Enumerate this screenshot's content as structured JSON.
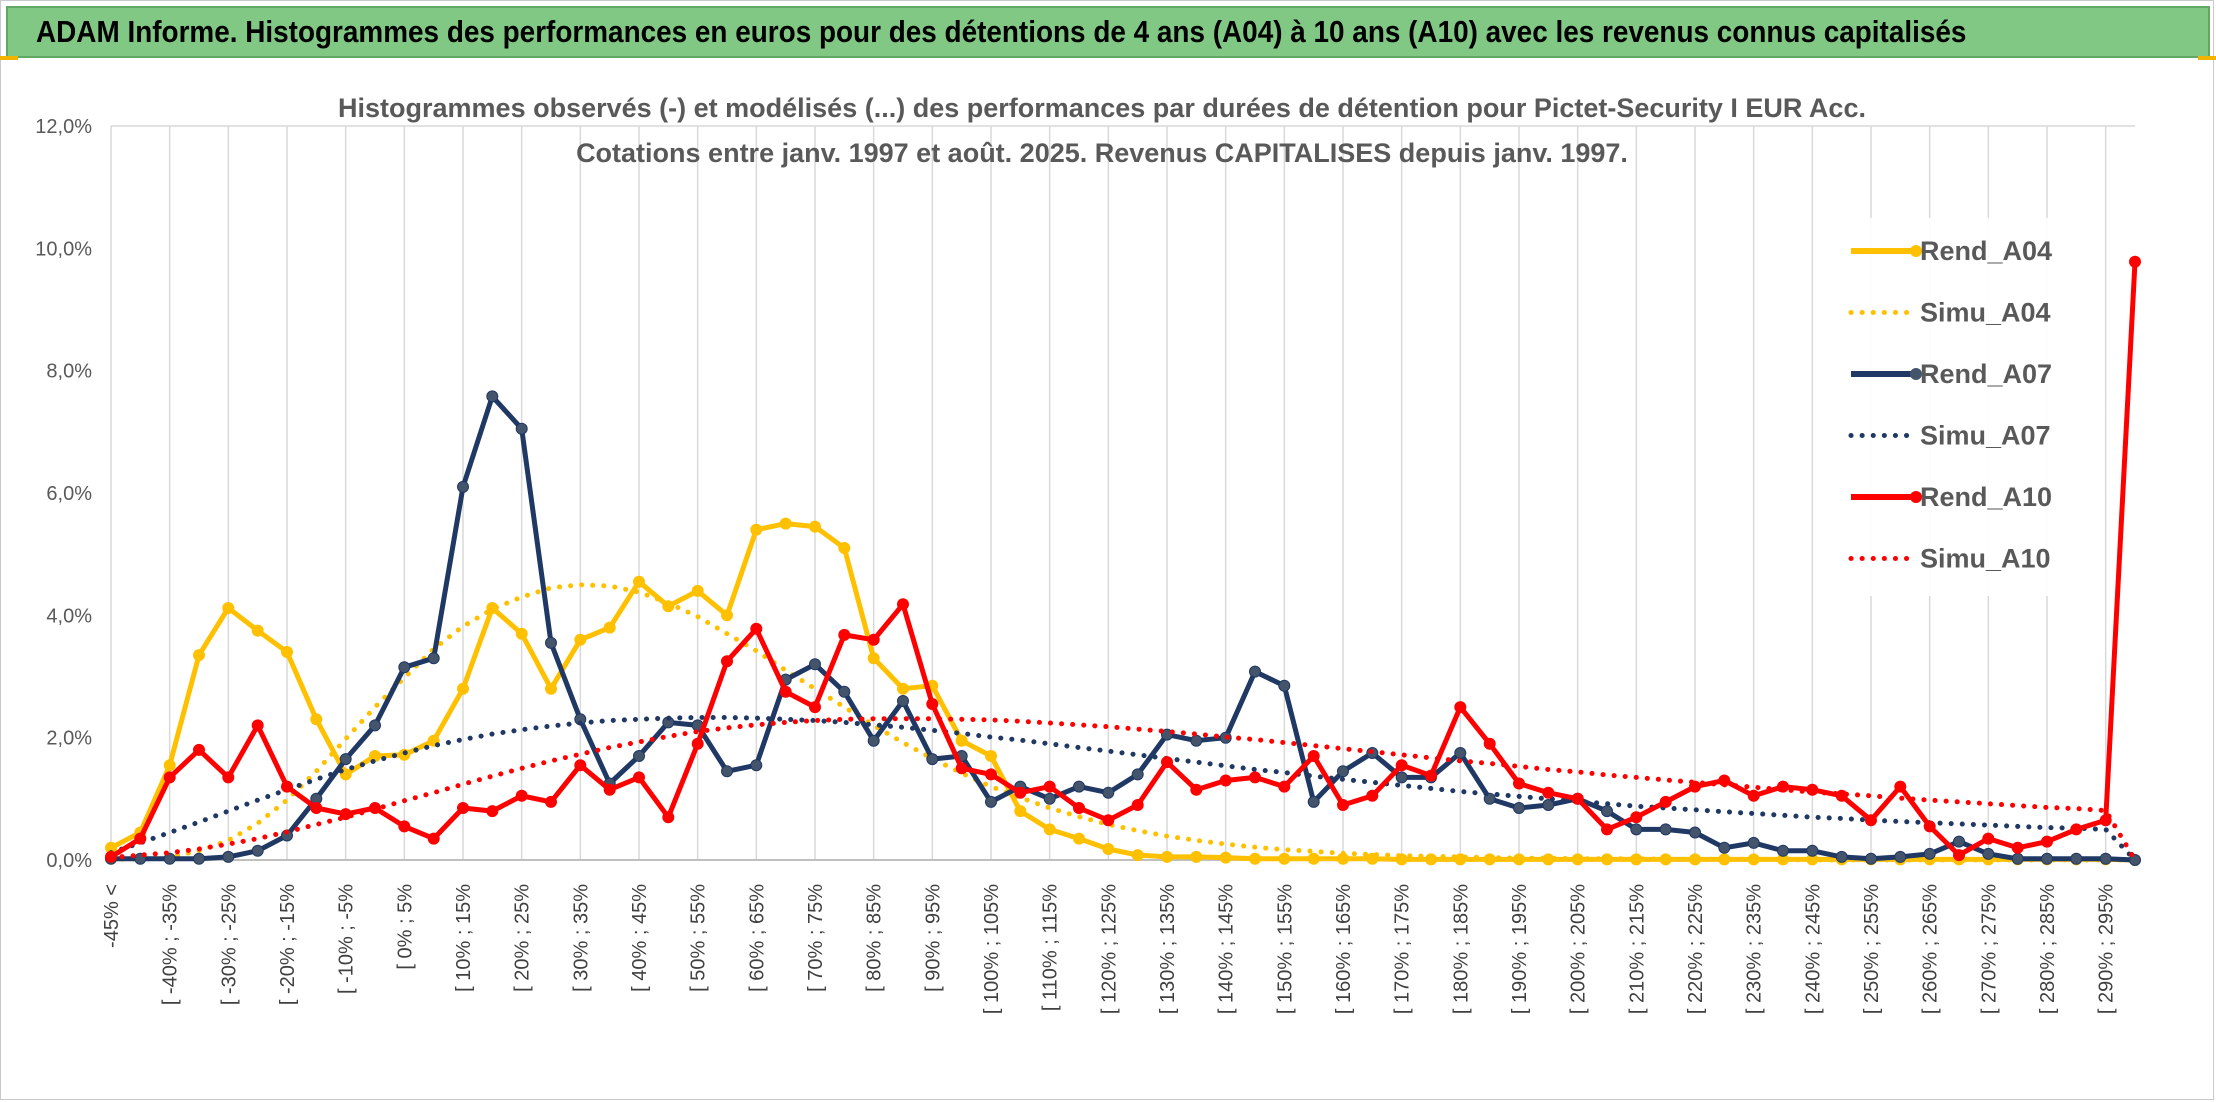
{
  "page": {
    "banner_title": "ADAM Informe. Histogrammes des performances en euros pour des détentions de 4 ans (A04) à 10 ans (A10) avec les revenus connus capitalisés",
    "accent_yellow": "#f2b400",
    "banner_color": "#80c883"
  },
  "chart_data": {
    "type": "line",
    "title_line1": "Histogrammes observés (-) et modélisés (...) des performances par durées de détention pour Pictet-Security I EUR Acc.",
    "title_line2": "Cotations entre janv. 1997 et août. 2025. Revenus CAPITALISES depuis janv. 1997.",
    "y_ticks": [
      "0,0%",
      "2,0%",
      "4,0%",
      "6,0%",
      "8,0%",
      "10,0%",
      "12,0%"
    ],
    "ylim": [
      0,
      12
    ],
    "grid": "vertical",
    "legend_position": "right",
    "x_tick_labels": [
      "-45% <",
      "[ -40% ; -35%",
      "[ -30% ; -25%",
      "[ -20% ; -15%",
      "[ -10% ; -5%",
      "[ 0% ; 5%",
      "[ 10% ; 15%",
      "[ 20% ; 25%",
      "[ 30% ; 35%",
      "[ 40% ; 45%",
      "[ 50% ; 55%",
      "[ 60% ; 65%",
      "[ 70% ; 75%",
      "[ 80% ; 85%",
      "[ 90% ; 95%",
      "[ 100% ; 105%",
      "[ 110% ; 115%",
      "[ 120% ; 125%",
      "[ 130% ; 135%",
      "[ 140% ; 145%",
      "[ 150% ; 155%",
      "[ 160% ; 165%",
      "[ 170% ; 175%",
      "[ 180% ; 185%",
      "[ 190% ; 195%",
      "[ 200% ; 205%",
      "[ 210% ; 215%",
      "[ 220% ; 225%",
      "[ 230% ; 235%",
      "[ 240% ; 245%",
      "[ 250% ; 255%",
      "[ 260% ; 265%",
      "[ 270% ; 275%",
      "[ 280% ; 285%",
      "[ 290% ; 295%"
    ],
    "series": [
      {
        "name": "Rend_A04",
        "style": "solid",
        "color": "#ffc000",
        "values": [
          0.2,
          0.45,
          1.55,
          3.35,
          4.12,
          3.75,
          3.4,
          2.3,
          1.4,
          1.7,
          1.72,
          1.95,
          2.8,
          4.12,
          3.7,
          2.8,
          3.6,
          3.8,
          4.55,
          4.15,
          4.4,
          4.0,
          5.4,
          5.5,
          5.45,
          5.1,
          3.3,
          2.8,
          2.85,
          1.95,
          1.7,
          0.8,
          0.5,
          0.35,
          0.18,
          0.08,
          0.05,
          0.05,
          0.04,
          0.02,
          0.02,
          0.02,
          0.02,
          0.02,
          0.01,
          0.01,
          0.01,
          0.01,
          0.01,
          0.01,
          0.01,
          0.01,
          0.01,
          0.01,
          0.01,
          0.01,
          0.01,
          0.01,
          0.01,
          0.01,
          0.01,
          0.01,
          0.01,
          0.01,
          0.01,
          0.01,
          0.01,
          0.01,
          0.01,
          0.0
        ]
      },
      {
        "name": "Simu_A04",
        "style": "dotted",
        "color": "#ffc000",
        "values": [
          0.01,
          0.02,
          0.05,
          0.15,
          0.32,
          0.6,
          0.98,
          1.45,
          1.98,
          2.5,
          2.98,
          3.45,
          3.82,
          4.1,
          4.3,
          4.45,
          4.5,
          4.48,
          4.38,
          4.2,
          3.98,
          3.7,
          3.42,
          3.1,
          2.8,
          2.5,
          2.2,
          1.92,
          1.66,
          1.42,
          1.2,
          1.02,
          0.85,
          0.71,
          0.58,
          0.48,
          0.39,
          0.32,
          0.26,
          0.21,
          0.17,
          0.14,
          0.11,
          0.09,
          0.07,
          0.06,
          0.05,
          0.04,
          0.03,
          0.03,
          0.02,
          0.02,
          0.02,
          0.01,
          0.01,
          0.01,
          0.01,
          0.01,
          0.0,
          0.0,
          0.0,
          0.0,
          0.0,
          0.0,
          0.0,
          0.0,
          0.0,
          0.0,
          0.0,
          0.0
        ]
      },
      {
        "name": "Rend_A07",
        "style": "solid",
        "color": "#1f3864",
        "values": [
          0.02,
          0.02,
          0.02,
          0.02,
          0.05,
          0.15,
          0.4,
          1.0,
          1.65,
          2.2,
          3.15,
          3.3,
          6.1,
          7.58,
          7.05,
          3.55,
          2.3,
          1.25,
          1.7,
          2.25,
          2.2,
          1.45,
          1.55,
          2.95,
          3.2,
          2.75,
          1.95,
          2.6,
          1.65,
          1.7,
          0.95,
          1.2,
          1.0,
          1.2,
          1.1,
          1.4,
          2.05,
          1.95,
          2.0,
          3.08,
          2.85,
          0.95,
          1.45,
          1.75,
          1.35,
          1.35,
          1.75,
          1.0,
          0.85,
          0.9,
          1.0,
          0.8,
          0.5,
          0.5,
          0.45,
          0.2,
          0.28,
          0.15,
          0.15,
          0.05,
          0.02,
          0.05,
          0.1,
          0.3,
          0.1,
          0.02,
          0.02,
          0.02,
          0.02,
          0.0
        ]
      },
      {
        "name": "Simu_A07",
        "style": "dotted",
        "color": "#1f3864",
        "values": [
          0.12,
          0.28,
          0.45,
          0.62,
          0.8,
          0.98,
          1.15,
          1.32,
          1.48,
          1.62,
          1.75,
          1.87,
          1.97,
          2.06,
          2.13,
          2.19,
          2.24,
          2.28,
          2.3,
          2.32,
          2.33,
          2.33,
          2.32,
          2.3,
          2.28,
          2.25,
          2.21,
          2.17,
          2.12,
          2.07,
          2.01,
          1.96,
          1.9,
          1.84,
          1.78,
          1.72,
          1.66,
          1.6,
          1.54,
          1.48,
          1.43,
          1.37,
          1.32,
          1.27,
          1.22,
          1.17,
          1.12,
          1.08,
          1.04,
          1.0,
          0.96,
          0.92,
          0.88,
          0.85,
          0.82,
          0.79,
          0.76,
          0.73,
          0.7,
          0.68,
          0.65,
          0.63,
          0.61,
          0.59,
          0.57,
          0.55,
          0.53,
          0.52,
          0.5,
          0.0
        ]
      },
      {
        "name": "Rend_A10",
        "style": "solid",
        "color": "#ff0000",
        "values": [
          0.05,
          0.35,
          1.35,
          1.8,
          1.35,
          2.2,
          1.2,
          0.85,
          0.75,
          0.85,
          0.55,
          0.35,
          0.85,
          0.8,
          1.05,
          0.95,
          1.55,
          1.15,
          1.35,
          0.7,
          1.9,
          3.25,
          3.78,
          2.75,
          2.5,
          3.68,
          3.6,
          4.18,
          2.55,
          1.5,
          1.4,
          1.1,
          1.2,
          0.85,
          0.65,
          0.9,
          1.6,
          1.15,
          1.3,
          1.35,
          1.2,
          1.7,
          0.9,
          1.05,
          1.55,
          1.38,
          2.5,
          1.9,
          1.25,
          1.1,
          1.0,
          0.5,
          0.7,
          0.95,
          1.2,
          1.3,
          1.05,
          1.2,
          1.15,
          1.05,
          0.65,
          1.2,
          0.55,
          0.08,
          0.35,
          0.2,
          0.3,
          0.5,
          0.65,
          9.78
        ]
      },
      {
        "name": "Simu_A10",
        "style": "dotted",
        "color": "#ff0000",
        "values": [
          0.04,
          0.08,
          0.12,
          0.18,
          0.26,
          0.35,
          0.46,
          0.58,
          0.7,
          0.83,
          0.97,
          1.1,
          1.24,
          1.37,
          1.5,
          1.62,
          1.73,
          1.84,
          1.93,
          2.02,
          2.1,
          2.16,
          2.21,
          2.25,
          2.28,
          2.3,
          2.31,
          2.31,
          2.31,
          2.3,
          2.29,
          2.27,
          2.24,
          2.21,
          2.18,
          2.14,
          2.1,
          2.06,
          2.01,
          1.97,
          1.92,
          1.87,
          1.82,
          1.77,
          1.72,
          1.67,
          1.62,
          1.58,
          1.53,
          1.48,
          1.44,
          1.39,
          1.35,
          1.31,
          1.27,
          1.23,
          1.19,
          1.15,
          1.11,
          1.08,
          1.05,
          1.01,
          0.98,
          0.95,
          0.92,
          0.89,
          0.86,
          0.84,
          0.81,
          0.0
        ]
      }
    ]
  }
}
